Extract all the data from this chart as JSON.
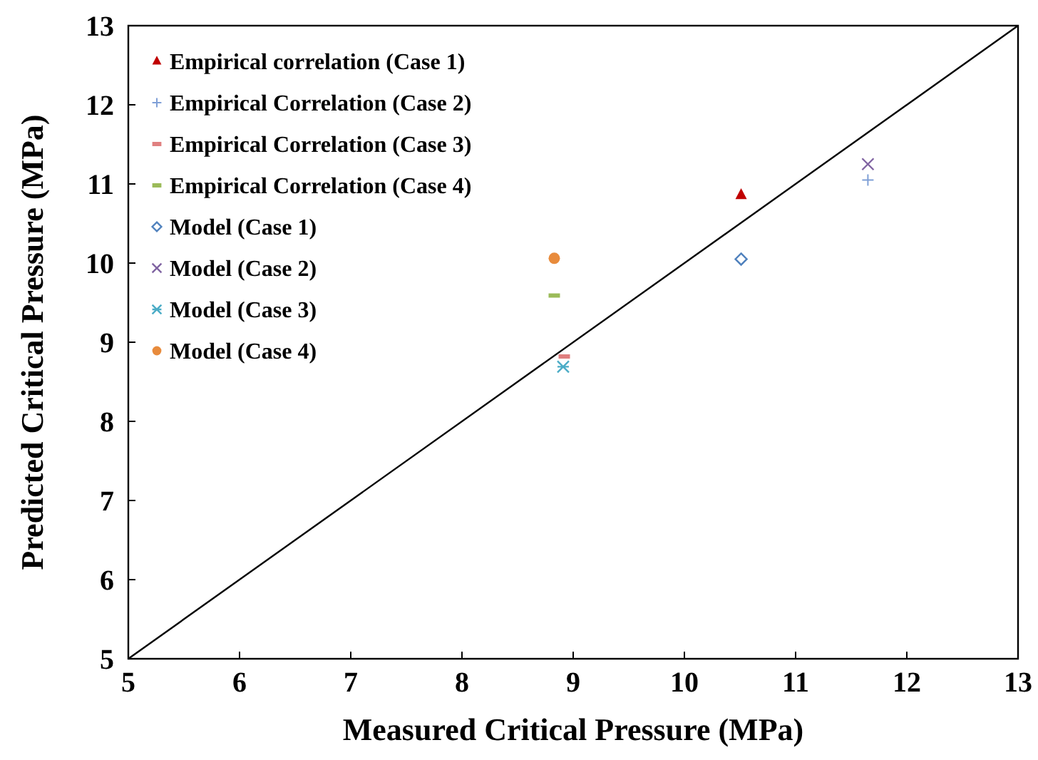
{
  "chart_data": {
    "type": "scatter",
    "xlabel": "Measured Critical Pressure (MPa)",
    "ylabel": "Predicted Critical Pressure (MPa)",
    "xlim": [
      5,
      13
    ],
    "ylim": [
      5,
      13
    ],
    "xticks": [
      5,
      6,
      7,
      8,
      9,
      10,
      11,
      12,
      13
    ],
    "yticks": [
      5,
      6,
      7,
      8,
      9,
      10,
      11,
      12,
      13
    ],
    "grid": false,
    "legend": "top left",
    "series": [
      {
        "name": "Empirical correlation (Case 1)",
        "color": "#c00000",
        "marker": "triangle",
        "x": [
          10.51
        ],
        "values": [
          10.86
        ]
      },
      {
        "name": "Empirical Correlation (Case 2)",
        "color": "#7f9fd6",
        "marker": "plus",
        "x": [
          11.65
        ],
        "values": [
          11.05
        ]
      },
      {
        "name": "Empirical Correlation (Case 3)",
        "color": "#e08080",
        "x": [
          8.92
        ],
        "values": [
          8.82
        ]
      },
      {
        "name": "Empirical Correlation (Case 4)",
        "color": "#9bbb59",
        "x": [
          8.83
        ],
        "values": [
          9.59
        ]
      },
      {
        "name": "Model (Case 1)",
        "color": "#4f81bd",
        "marker": "diamond",
        "x": [
          10.51
        ],
        "values": [
          10.05
        ]
      },
      {
        "name": "Model (Case 2)",
        "color": "#8064a2",
        "marker": "x",
        "x": [
          11.65
        ],
        "values": [
          11.25
        ]
      },
      {
        "name": "Model (Case 3)",
        "color": "#4bacc6",
        "marker": "cross",
        "x": [
          8.91
        ],
        "values": [
          8.69
        ]
      },
      {
        "name": "Model (Case 4)",
        "color": "#e88b3c",
        "marker": "circle",
        "x": [
          8.83
        ],
        "values": [
          10.06
        ]
      },
      {
        "type": "line",
        "color": "#000000",
        "marker": "none",
        "x": [
          5,
          13
        ],
        "values": [
          5,
          13
        ]
      }
    ]
  }
}
